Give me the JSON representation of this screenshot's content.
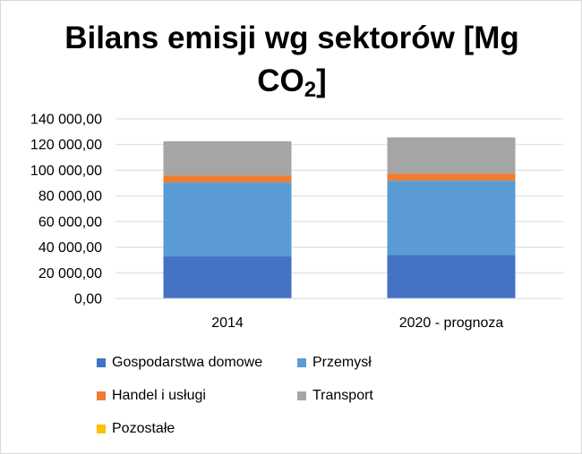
{
  "chart_data": {
    "type": "bar",
    "stacked": true,
    "title": "Bilans emisji wg sektorów [Mg CO",
    "title_sub": "2",
    "title_end": "]",
    "categories": [
      "2014",
      "2020 - prognoza"
    ],
    "ylim": [
      0,
      140000
    ],
    "yticks": [
      0,
      20000,
      40000,
      60000,
      80000,
      100000,
      120000,
      140000
    ],
    "ytick_labels": [
      "0,00",
      "20 000,00",
      "40 000,00",
      "60 000,00",
      "80 000,00",
      "100 000,00",
      "120 000,00",
      "140 000,00"
    ],
    "grid": true,
    "legend_position": "bottom",
    "series": [
      {
        "name": "Gospodarstwa domowe",
        "color": "#4472C4",
        "values": [
          33000,
          33800
        ]
      },
      {
        "name": "Przemysł",
        "color": "#5B9BD5",
        "values": [
          57500,
          58000
        ]
      },
      {
        "name": "Handel i usługi",
        "color": "#ED7D31",
        "values": [
          5500,
          5600
        ]
      },
      {
        "name": "Transport",
        "color": "#A5A5A5",
        "values": [
          26500,
          28200
        ]
      },
      {
        "name": "Pozostałe",
        "color": "#FFC000",
        "values": [
          0,
          0
        ]
      }
    ]
  }
}
